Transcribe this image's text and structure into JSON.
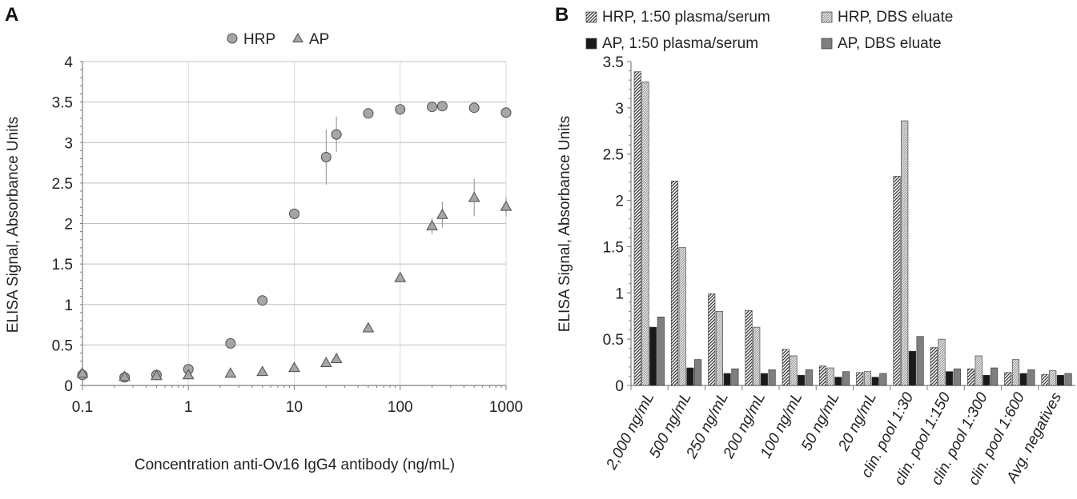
{
  "panels": {
    "a": {
      "letter": "A"
    },
    "b": {
      "letter": "B"
    }
  },
  "chart_data": [
    {
      "type": "scatter",
      "x_scale": "log",
      "xlabel": "Concentration anti-Ov16 IgG4 antibody (ng/mL)",
      "ylabel": "ELISA Signal, Absorbance Units",
      "xlim": [
        0.1,
        1000
      ],
      "ylim": [
        0,
        4
      ],
      "x_ticks": [
        "0.1",
        "1",
        "10",
        "100",
        "1000"
      ],
      "y_ticks": [
        "0",
        "0.5",
        "1",
        "1.5",
        "2",
        "2.5",
        "3",
        "3.5",
        "4"
      ],
      "legend_position": "top",
      "grid": true,
      "series": [
        {
          "name": "HRP",
          "marker": "circle",
          "color": "#a6a6a6",
          "points": [
            {
              "x": 0.1,
              "y": 0.13
            },
            {
              "x": 0.25,
              "y": 0.1
            },
            {
              "x": 0.5,
              "y": 0.13
            },
            {
              "x": 1,
              "y": 0.2
            },
            {
              "x": 2.5,
              "y": 0.52
            },
            {
              "x": 5,
              "y": 1.05
            },
            {
              "x": 10,
              "y": 2.12
            },
            {
              "x": 20,
              "y": 2.82,
              "err": 0.34
            },
            {
              "x": 25,
              "y": 3.1,
              "err": 0.22
            },
            {
              "x": 50,
              "y": 3.36
            },
            {
              "x": 100,
              "y": 3.41
            },
            {
              "x": 200,
              "y": 3.44
            },
            {
              "x": 250,
              "y": 3.45
            },
            {
              "x": 500,
              "y": 3.43
            },
            {
              "x": 1000,
              "y": 3.37
            }
          ]
        },
        {
          "name": "AP",
          "marker": "triangle",
          "color": "#a6a6a6",
          "points": [
            {
              "x": 0.1,
              "y": 0.15
            },
            {
              "x": 0.25,
              "y": 0.11
            },
            {
              "x": 0.5,
              "y": 0.12
            },
            {
              "x": 1,
              "y": 0.13
            },
            {
              "x": 2.5,
              "y": 0.15
            },
            {
              "x": 5,
              "y": 0.17
            },
            {
              "x": 10,
              "y": 0.22
            },
            {
              "x": 20,
              "y": 0.28
            },
            {
              "x": 25,
              "y": 0.33
            },
            {
              "x": 50,
              "y": 0.71
            },
            {
              "x": 100,
              "y": 1.33
            },
            {
              "x": 200,
              "y": 1.97,
              "err": 0.1
            },
            {
              "x": 250,
              "y": 2.11,
              "err": 0.16
            },
            {
              "x": 500,
              "y": 2.32,
              "err": 0.23
            },
            {
              "x": 1000,
              "y": 2.21,
              "err": 0.12
            }
          ]
        }
      ]
    },
    {
      "type": "bar",
      "ylabel": "ELISA Signal, Absorbance Units",
      "ylim": [
        0,
        3.5
      ],
      "y_ticks": [
        "0",
        "0.5",
        "1",
        "1.5",
        "2",
        "2.5",
        "3",
        "3.5"
      ],
      "legend_position": "top",
      "grid": false,
      "categories": [
        "2,000 ng/mL",
        "500 ng/mL",
        "250 ng/mL",
        "200 ng/mL",
        "100 ng/mL",
        "50 ng/mL",
        "20 ng/mL",
        "clin. pool 1:30",
        "clin. pool 1:150",
        "clin. pool 1:300",
        "clin. pool 1:600",
        "Avg. negatives"
      ],
      "series": [
        {
          "name": "HRP, 1:50 plasma/serum",
          "fill": "hatch-diagonal",
          "color": "#555555",
          "values": [
            3.39,
            2.21,
            0.99,
            0.81,
            0.39,
            0.21,
            0.14,
            2.26,
            0.41,
            0.18,
            0.14,
            0.12
          ]
        },
        {
          "name": "HRP, DBS eluate",
          "fill": "hatch-light",
          "color": "#bfbfbf",
          "values": [
            3.28,
            1.49,
            0.8,
            0.63,
            0.32,
            0.19,
            0.15,
            2.86,
            0.5,
            0.32,
            0.28,
            0.16
          ]
        },
        {
          "name": "AP, 1:50 plasma/serum",
          "fill": "solid",
          "color": "#1a1a1a",
          "values": [
            0.63,
            0.19,
            0.13,
            0.13,
            0.11,
            0.09,
            0.09,
            0.37,
            0.15,
            0.11,
            0.13,
            0.11
          ]
        },
        {
          "name": "AP, DBS eluate",
          "fill": "solid",
          "color": "#7f7f7f",
          "values": [
            0.74,
            0.28,
            0.18,
            0.17,
            0.17,
            0.15,
            0.13,
            0.53,
            0.18,
            0.19,
            0.17,
            0.13
          ]
        }
      ]
    }
  ]
}
